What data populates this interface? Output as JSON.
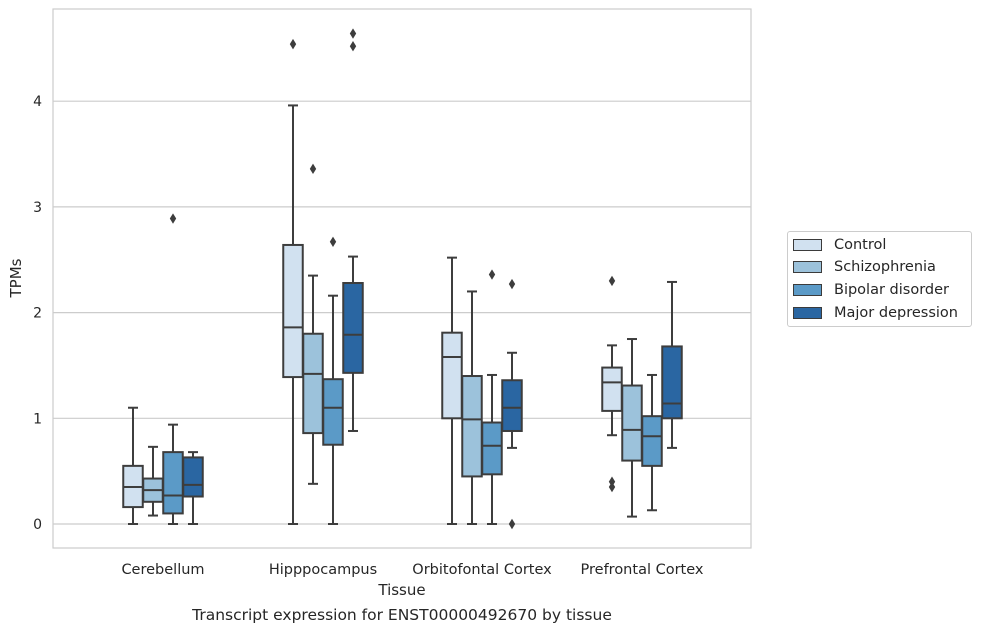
{
  "caption": "Transcript expression for ENST00000492670 by tissue",
  "chart_data": {
    "type": "box",
    "xlabel": "Tissue",
    "ylabel": "TPMs",
    "ylim": [
      -0.22,
      4.9
    ],
    "yticks": [
      0,
      1,
      2,
      3,
      4
    ],
    "grid": "horizontal",
    "legend_placement": "right",
    "categories": [
      "Cerebellum",
      "Hipppocampus",
      "Orbitofontal Cortex",
      "Prefrontal Cortex"
    ],
    "series": [
      {
        "name": "Control",
        "color": "#d1e1f0",
        "boxes": [
          {
            "q1": 0.16,
            "median": 0.35,
            "q3": 0.55,
            "whislo": 0.0,
            "whishi": 1.1,
            "fliers": []
          },
          {
            "q1": 1.39,
            "median": 1.86,
            "q3": 2.64,
            "whislo": 0.0,
            "whishi": 3.96,
            "fliers": [
              4.54
            ]
          },
          {
            "q1": 1.0,
            "median": 1.58,
            "q3": 1.81,
            "whislo": 0.0,
            "whishi": 2.52,
            "fliers": []
          },
          {
            "q1": 1.07,
            "median": 1.34,
            "q3": 1.48,
            "whislo": 0.84,
            "whishi": 1.69,
            "fliers": [
              2.3,
              0.4,
              0.35
            ]
          }
        ]
      },
      {
        "name": "Schizophrenia",
        "color": "#9cc2db",
        "boxes": [
          {
            "q1": 0.21,
            "median": 0.32,
            "q3": 0.43,
            "whislo": 0.08,
            "whishi": 0.73,
            "fliers": []
          },
          {
            "q1": 0.86,
            "median": 1.42,
            "q3": 1.8,
            "whislo": 0.38,
            "whishi": 2.35,
            "fliers": [
              3.36
            ]
          },
          {
            "q1": 0.45,
            "median": 0.99,
            "q3": 1.4,
            "whislo": 0.0,
            "whishi": 2.2,
            "fliers": []
          },
          {
            "q1": 0.6,
            "median": 0.89,
            "q3": 1.31,
            "whislo": 0.07,
            "whishi": 1.75,
            "fliers": []
          }
        ]
      },
      {
        "name": "Bipolar disorder",
        "color": "#5b9ac7",
        "boxes": [
          {
            "q1": 0.1,
            "median": 0.27,
            "q3": 0.68,
            "whislo": 0.0,
            "whishi": 0.94,
            "fliers": [
              2.89
            ]
          },
          {
            "q1": 0.75,
            "median": 1.1,
            "q3": 1.37,
            "whislo": 0.0,
            "whishi": 2.16,
            "fliers": [
              2.67
            ]
          },
          {
            "q1": 0.47,
            "median": 0.74,
            "q3": 0.96,
            "whislo": 0.0,
            "whishi": 1.41,
            "fliers": [
              2.36
            ]
          },
          {
            "q1": 0.55,
            "median": 0.83,
            "q3": 1.02,
            "whislo": 0.13,
            "whishi": 1.41,
            "fliers": []
          }
        ]
      },
      {
        "name": "Major depression",
        "color": "#2a66a2",
        "boxes": [
          {
            "q1": 0.26,
            "median": 0.37,
            "q3": 0.63,
            "whislo": 0.0,
            "whishi": 0.68,
            "fliers": []
          },
          {
            "q1": 1.43,
            "median": 1.79,
            "q3": 2.28,
            "whislo": 0.88,
            "whishi": 2.53,
            "fliers": [
              4.64,
              4.52
            ]
          },
          {
            "q1": 0.88,
            "median": 1.1,
            "q3": 1.36,
            "whislo": 0.72,
            "whishi": 1.62,
            "fliers": [
              2.27,
              0.0
            ]
          },
          {
            "q1": 1.0,
            "median": 1.14,
            "q3": 1.68,
            "whislo": 0.72,
            "whishi": 2.29,
            "fliers": []
          }
        ]
      }
    ]
  }
}
